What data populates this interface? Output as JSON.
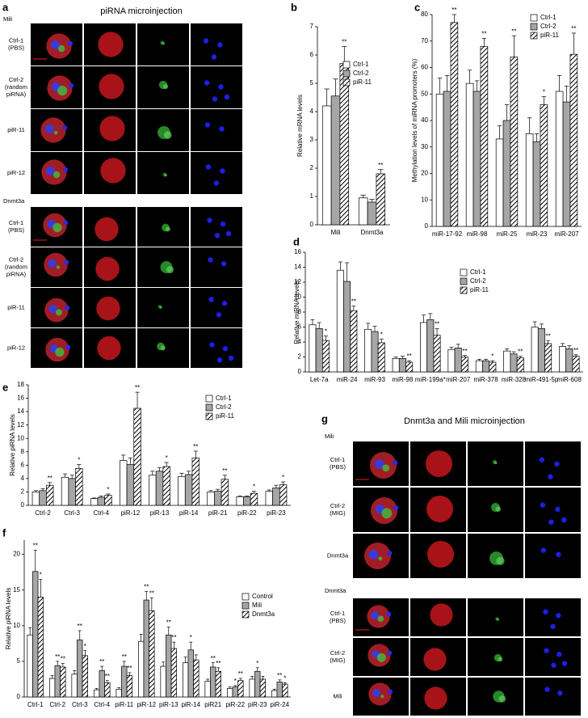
{
  "panel_a": {
    "label": "a",
    "title": "piRNA  microinjection",
    "groups": [
      {
        "name": "Mili",
        "rows": [
          [
            "Ctrl-1",
            "(PBS)"
          ],
          [
            "Ctrl-2",
            "(random",
            "piRNA)"
          ],
          [
            "piR-11"
          ],
          [
            "piR-12"
          ]
        ]
      },
      {
        "name": "Dnmt3a",
        "rows": [
          [
            "Ctrl-1",
            "(PBS)"
          ],
          [
            "Ctrl-2",
            "(random",
            "piRNA)"
          ],
          [
            "piR-11"
          ],
          [
            "piR-12"
          ]
        ]
      }
    ]
  },
  "panel_g": {
    "label": "g",
    "title": "Dnmt3a and Mili  microinjection",
    "groups": [
      {
        "name": "Mili",
        "rows": [
          [
            "Ctrl-1",
            "(PBS)"
          ],
          [
            "Ctrl-2",
            "(MIG)"
          ],
          [
            "Dnmt3a"
          ]
        ]
      },
      {
        "name": "Dnmt3a",
        "rows": [
          [
            "Ctrl-1",
            "(PBS)"
          ],
          [
            "Ctrl-2",
            "(MIG)"
          ],
          [
            "Mili"
          ]
        ]
      }
    ]
  },
  "chart_data": [
    {
      "type": "bar",
      "label": "b",
      "y_label": "Relative mRNA levels",
      "categories": [
        "Mili",
        "Dnmt3a"
      ],
      "ylim": [
        0,
        7
      ],
      "yticks": [
        0,
        1,
        2,
        3,
        4,
        5,
        6,
        7
      ],
      "series": [
        {
          "name": "Ctrl-1",
          "color": "#ffffff",
          "values": [
            4.2,
            0.95
          ],
          "errors": [
            0.6,
            0.1
          ],
          "annotations": [
            null,
            null
          ]
        },
        {
          "name": "Ctrl-2",
          "color": "#a6a6a6",
          "values": [
            4.55,
            0.8
          ],
          "errors": [
            0.6,
            0.1
          ],
          "annotations": [
            null,
            null
          ]
        },
        {
          "name": "piR-11",
          "color": "#000000",
          "hatch": true,
          "values": [
            5.7,
            1.8
          ],
          "errors": [
            0.6,
            0.15
          ],
          "annotations": [
            "**",
            "**"
          ]
        }
      ]
    },
    {
      "type": "bar",
      "label": "c",
      "y_label": "Methylation levels of miRNA promoters (%)",
      "categories": [
        "miR-17-92",
        "miR-98",
        "miR-25",
        "miR-23",
        "miR-207"
      ],
      "ylim": [
        0,
        80
      ],
      "yticks": [
        0,
        10,
        20,
        30,
        40,
        50,
        60,
        70,
        80
      ],
      "series": [
        {
          "name": "Ctrl-1",
          "color": "#ffffff",
          "values": [
            50,
            54,
            33,
            35,
            51
          ],
          "errors": [
            6,
            5,
            5,
            6,
            6
          ],
          "annotations": [
            null,
            null,
            null,
            null,
            null
          ]
        },
        {
          "name": "Ctrl-2",
          "color": "#a6a6a6",
          "values": [
            51,
            51,
            40,
            32,
            47
          ],
          "errors": [
            6,
            4,
            6,
            3,
            6
          ],
          "annotations": [
            null,
            null,
            null,
            null,
            null
          ]
        },
        {
          "name": "piR-11",
          "color": "#000000",
          "hatch": true,
          "values": [
            77,
            68,
            64,
            46,
            65
          ],
          "errors": [
            3,
            3,
            8,
            3,
            8
          ],
          "annotations": [
            "**",
            "**",
            "**",
            "*",
            "**"
          ]
        }
      ]
    },
    {
      "type": "bar",
      "label": "d",
      "y_label": "Relative miRNA levels",
      "categories": [
        "Let-7a",
        "miR-24",
        "miR-93",
        "miR-98",
        "miR-199a*",
        "miR-207",
        "miR-378",
        "miR-328",
        "miR-491-5p",
        "miR-608"
      ],
      "ylim": [
        0,
        16
      ],
      "yticks": [
        0,
        2,
        4,
        6,
        8,
        10,
        12,
        14,
        16
      ],
      "series": [
        {
          "name": "Ctrl-1",
          "color": "#ffffff",
          "values": [
            6.3,
            13.6,
            5.7,
            1.8,
            6.6,
            3.0,
            1.5,
            2.8,
            6.0,
            3.4
          ],
          "errors": [
            0.7,
            1.1,
            0.8,
            0.2,
            1.0,
            0.3,
            0.2,
            0.3,
            0.7,
            0.4
          ],
          "annotations": [
            null,
            null,
            null,
            null,
            null,
            null,
            null,
            null,
            null,
            null
          ]
        },
        {
          "name": "Ctrl-2",
          "color": "#a6a6a6",
          "values": [
            5.8,
            12.1,
            5.4,
            1.8,
            7.0,
            3.2,
            1.5,
            2.4,
            5.8,
            3.1
          ],
          "errors": [
            0.8,
            2.5,
            0.7,
            0.3,
            0.8,
            0.5,
            0.2,
            0.3,
            0.6,
            0.4
          ],
          "annotations": [
            null,
            null,
            null,
            null,
            null,
            null,
            null,
            null,
            null,
            null
          ]
        },
        {
          "name": "piR-11",
          "color": "#000000",
          "hatch": true,
          "values": [
            4.2,
            8.2,
            3.9,
            1.3,
            4.9,
            2.0,
            1.3,
            1.9,
            3.8,
            2.1
          ],
          "errors": [
            0.6,
            0.6,
            0.5,
            0.2,
            0.9,
            0.2,
            0.2,
            0.2,
            0.4,
            0.2
          ],
          "annotations": [
            "*",
            "**",
            "*",
            "**",
            "**",
            "**",
            "*",
            "**",
            "**",
            "**"
          ]
        }
      ]
    },
    {
      "type": "bar",
      "label": "e",
      "y_label": "Relative piRNA levels",
      "categories": [
        "Ctrl-2",
        "Ctrl-3",
        "Ctrl-4",
        "piR-12",
        "piR-13",
        "piR-14",
        "piR-21",
        "piR-22",
        "piR-23"
      ],
      "ylim": [
        0,
        18
      ],
      "yticks": [
        0,
        2,
        4,
        6,
        8,
        10,
        12,
        14,
        16,
        18
      ],
      "series": [
        {
          "name": "Ctrl-1",
          "color": "#ffffff",
          "values": [
            2.0,
            4.2,
            1.0,
            6.7,
            4.5,
            4.3,
            2.0,
            1.3,
            2.1
          ],
          "errors": [
            0.2,
            0.5,
            0.1,
            0.8,
            0.6,
            0.5,
            0.2,
            0.1,
            0.2
          ],
          "annotations": [
            null,
            null,
            null,
            null,
            null,
            null,
            null,
            null,
            null
          ]
        },
        {
          "name": "Ctrl-2",
          "color": "#a6a6a6",
          "values": [
            2.2,
            4.0,
            1.2,
            6.1,
            5.1,
            4.6,
            2.1,
            1.3,
            2.6
          ],
          "errors": [
            0.3,
            0.5,
            0.2,
            1.0,
            0.5,
            0.5,
            0.3,
            0.1,
            0.4
          ],
          "annotations": [
            null,
            null,
            null,
            null,
            null,
            null,
            null,
            null,
            null
          ]
        },
        {
          "name": "piR-11",
          "color": "#000000",
          "hatch": true,
          "values": [
            3.0,
            5.5,
            1.5,
            14.5,
            5.8,
            7.1,
            3.9,
            1.8,
            3.1
          ],
          "errors": [
            0.4,
            0.6,
            0.2,
            2.4,
            0.6,
            1.0,
            0.6,
            0.3,
            0.4
          ],
          "annotations": [
            "**",
            "*",
            "*",
            "**",
            "*",
            "**",
            "**",
            "*",
            "*"
          ]
        }
      ]
    },
    {
      "type": "bar",
      "label": "f",
      "y_label": "Relative piRNA levels",
      "categories": [
        "Ctrl-1",
        "Ctrl-2",
        "Ctrl-3",
        "Ctrl-4",
        "piR-11",
        "piR-12",
        "piR-13",
        "piR-14",
        "piR21",
        "piR-22",
        "piR-23",
        "piR-24"
      ],
      "ylim": [
        0,
        22
      ],
      "yticks": [
        0,
        5,
        10,
        15,
        20
      ],
      "series": [
        {
          "name": "Control",
          "color": "#ffffff",
          "values": [
            8.7,
            2.6,
            3.2,
            1.0,
            1.1,
            7.8,
            4.3,
            4.8,
            2.2,
            1.2,
            2.5,
            0.9
          ],
          "errors": [
            1.0,
            0.4,
            0.5,
            0.2,
            0.2,
            1.0,
            0.6,
            0.8,
            0.3,
            0.2,
            0.4,
            0.2
          ],
          "annotations": [
            null,
            null,
            null,
            null,
            null,
            null,
            null,
            null,
            null,
            null,
            null,
            null
          ]
        },
        {
          "name": "Mili",
          "color": "#a6a6a6",
          "values": [
            17.6,
            4.4,
            8.0,
            3.7,
            4.3,
            13.6,
            8.7,
            6.6,
            4.2,
            1.4,
            3.6,
            2.1
          ],
          "errors": [
            3.0,
            0.6,
            1.3,
            0.6,
            0.7,
            1.2,
            1.1,
            1.1,
            0.6,
            0.2,
            0.5,
            0.3
          ],
          "annotations": [
            "**",
            "**",
            "**",
            "**",
            "**",
            "**",
            "**",
            "*",
            "**",
            "*",
            "*",
            "**"
          ]
        },
        {
          "name": "Dnmt3a",
          "color": "#000000",
          "hatch": true,
          "values": [
            14.0,
            4.2,
            5.8,
            2.0,
            3.0,
            12.1,
            6.8,
            5.2,
            3.6,
            2.3,
            2.5,
            1.8
          ],
          "errors": [
            2.5,
            0.5,
            0.7,
            0.3,
            0.4,
            1.8,
            0.9,
            0.7,
            0.5,
            0.3,
            0.4,
            0.2
          ],
          "annotations": [
            "*",
            "**",
            "*",
            "**",
            "**",
            "**",
            "**",
            null,
            "**",
            "**",
            null,
            "*"
          ]
        }
      ]
    }
  ]
}
